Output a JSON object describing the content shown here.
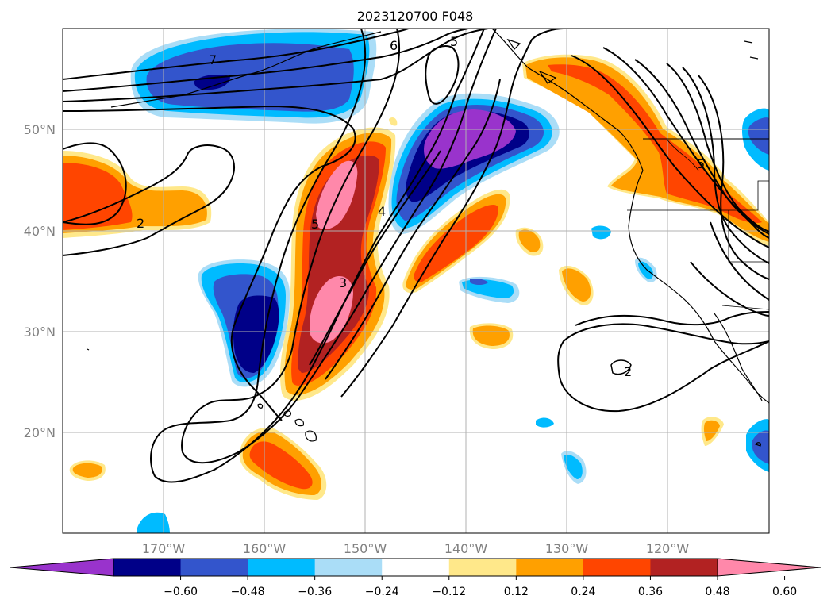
{
  "title": "2023120700 F048",
  "axes": {
    "lat_ticks": [
      "50°N",
      "40°N",
      "30°N",
      "20°N"
    ],
    "lon_ticks": [
      "170°W",
      "160°W",
      "150°W",
      "140°W",
      "130°W",
      "120°W"
    ]
  },
  "contour_labels": [
    "7",
    "6",
    "5",
    "2",
    "5",
    "4",
    "3",
    "5",
    "2"
  ],
  "colorbar": {
    "tick_labels": [
      "−0.60",
      "−0.48",
      "−0.36",
      "−0.24",
      "−0.12",
      "0.12",
      "0.24",
      "0.36",
      "0.48",
      "0.60"
    ],
    "colors": [
      "#9933cc",
      "#000088",
      "#3355cc",
      "#00bbff",
      "#aaddf7",
      "#ffffff",
      "#ffe88a",
      "#ffa000",
      "#ff4500",
      "#b22222",
      "#ff88aa"
    ],
    "extend_min_color": "#9933cc",
    "extend_max_color": "#ff88aa"
  },
  "colors": {
    "grid": "#b0b0b0",
    "contour": "#000000",
    "coast": "#000000"
  }
}
